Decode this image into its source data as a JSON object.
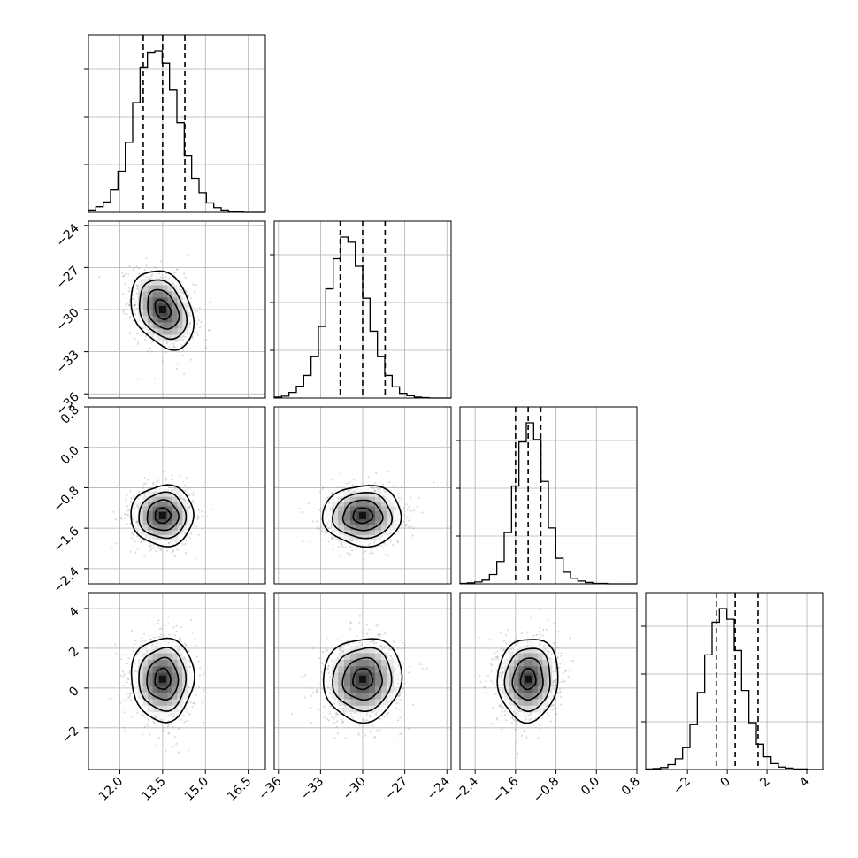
{
  "chart_data": {
    "type": "corner",
    "grid": true,
    "parameters": [
      {
        "id": "p0",
        "range": [
          10.9,
          17.1
        ],
        "ticks": [
          12.0,
          13.5,
          15.0,
          16.5
        ],
        "tick_labels": [
          "12.0",
          "13.5",
          "15.0",
          "16.5"
        ],
        "mean": 13.5,
        "sigma": 0.55,
        "quantiles": [
          12.82,
          13.5,
          14.28
        ]
      },
      {
        "id": "p1",
        "range": [
          -36.3,
          -23.7
        ],
        "ticks": [
          -36,
          -33,
          -30,
          -27,
          -24
        ],
        "tick_labels": [
          "−36",
          "−33",
          "−30",
          "−27",
          "−24"
        ],
        "mean": -30.0,
        "sigma": 1.4,
        "quantiles": [
          -31.6,
          -30.0,
          -28.4
        ]
      },
      {
        "id": "p2",
        "range": [
          -2.7,
          0.8
        ],
        "ticks": [
          -2.4,
          -1.6,
          -0.8,
          0.0,
          0.8
        ],
        "tick_labels": [
          "−2.4",
          "−1.6",
          "−0.8",
          "0.0",
          "0.8"
        ],
        "mean": -1.35,
        "sigma": 0.3,
        "quantiles": [
          -1.6,
          -1.35,
          -1.1
        ]
      },
      {
        "id": "p3",
        "range": [
          -4.1,
          4.8
        ],
        "ticks": [
          -2,
          0,
          2,
          4
        ],
        "tick_labels": [
          "−2",
          "0",
          "2",
          "4"
        ],
        "mean": 0.45,
        "sigma": 1.05,
        "quantiles": [
          -0.55,
          0.4,
          1.55
        ]
      }
    ],
    "histograms": [
      {
        "parameter": "p0",
        "bins": 24,
        "counts": [
          5,
          12,
          22,
          48,
          88,
          150,
          235,
          310,
          342,
          345,
          320,
          262,
          192,
          122,
          73,
          42,
          20,
          10,
          5,
          2,
          1,
          0,
          0,
          0
        ]
      },
      {
        "parameter": "p1",
        "bins": 24,
        "counts": [
          2,
          4,
          12,
          25,
          48,
          88,
          152,
          232,
          296,
          342,
          331,
          280,
          212,
          142,
          88,
          48,
          24,
          10,
          5,
          2,
          1,
          0,
          0,
          0
        ]
      },
      {
        "parameter": "p2",
        "bins": 24,
        "counts": [
          1,
          2,
          4,
          8,
          20,
          48,
          110,
          210,
          305,
          346,
          310,
          220,
          120,
          55,
          25,
          12,
          6,
          3,
          1,
          1,
          0,
          0,
          0,
          0
        ]
      },
      {
        "parameter": "p3",
        "bins": 24,
        "counts": [
          1,
          2,
          4,
          10,
          22,
          45,
          92,
          158,
          235,
          302,
          330,
          308,
          244,
          162,
          96,
          52,
          26,
          12,
          5,
          3,
          1,
          1,
          0,
          0
        ]
      }
    ],
    "pairs": [
      {
        "x": "p0",
        "y": "p1",
        "correlation": -0.3
      },
      {
        "x": "p0",
        "y": "p2",
        "correlation": 0.0
      },
      {
        "x": "p1",
        "y": "p2",
        "correlation": 0.0
      },
      {
        "x": "p0",
        "y": "p3",
        "correlation": 0.0
      },
      {
        "x": "p1",
        "y": "p3",
        "correlation": 0.05
      },
      {
        "x": "p2",
        "y": "p3",
        "correlation": 0.05
      }
    ],
    "contour_levels_sigma": [
      0.5,
      1.0,
      1.5,
      2.0
    ]
  }
}
